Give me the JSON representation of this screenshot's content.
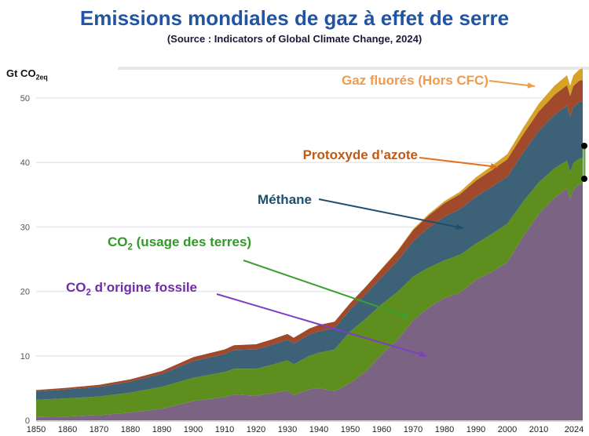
{
  "header": {
    "title": "Emissions mondiales de gaz à effet de serre",
    "subtitle": "(Source : Indicators of Global Climate Change, 2024)",
    "title_color": "#2155a4",
    "subtitle_color": "#1a1a38"
  },
  "axis": {
    "unit_pre": "Gt CO",
    "unit_sub": "2eq",
    "x_ticks": [
      "1850",
      "1860",
      "1870",
      "1880",
      "1890",
      "1900",
      "1910",
      "1920",
      "1930",
      "1940",
      "1950",
      "1960",
      "1970",
      "1980",
      "1990",
      "2000",
      "2010",
      "2024"
    ],
    "y_ticks": [
      0,
      10,
      20,
      30,
      40,
      50
    ]
  },
  "labels": {
    "fgas": {
      "text": "Gaz fluorés (Hors CFC)",
      "color": "#ee9b4f",
      "arrow_color": "#ee9b4f"
    },
    "n2o": {
      "text": "Protoxyde d’azote",
      "color": "#bd5a14",
      "arrow_color": "#e2711c"
    },
    "ch4": {
      "text": "Méthane",
      "color": "#1d4f6e",
      "arrow_color": "#1d4f6e"
    },
    "co2land": {
      "pre": "CO",
      "sub": "2",
      "post": " (usage des terres)",
      "color": "#2f9a28",
      "arrow_color": "#3aa032"
    },
    "co2fossil": {
      "pre": "CO",
      "sub": "2",
      "post": " d’origine fossile",
      "color": "#6f2da8",
      "arrow_color": "#7d3fc1"
    }
  },
  "annotation": {
    "type": "selected-line",
    "line_color": "#6aa84f",
    "handle_color": "#000000"
  },
  "chart_data": {
    "type": "area",
    "stacked": true,
    "title": "Emissions mondiales de gaz à effet de serre",
    "source": "Indicators of Global Climate Change, 2024",
    "xlabel": "",
    "ylabel": "Gt CO2eq",
    "xlim": [
      1850,
      2024
    ],
    "ylim": [
      0,
      55
    ],
    "grid": "horizontal",
    "legend_position": "inline-arrow-labels",
    "years": [
      1850,
      1860,
      1870,
      1880,
      1890,
      1900,
      1910,
      1913,
      1920,
      1925,
      1930,
      1932,
      1937,
      1940,
      1945,
      1950,
      1955,
      1960,
      1965,
      1970,
      1975,
      1980,
      1985,
      1990,
      1995,
      2000,
      2005,
      2010,
      2015,
      2019,
      2020,
      2021,
      2022,
      2023,
      2024
    ],
    "series": [
      {
        "id": "co2-fossile",
        "name": "CO2 d’origine fossile",
        "color": "#7b6384",
        "values": [
          0.5,
          0.6,
          0.8,
          1.2,
          1.8,
          3.0,
          3.6,
          4.0,
          3.8,
          4.2,
          4.6,
          3.9,
          4.8,
          5.0,
          4.5,
          5.8,
          7.6,
          10.2,
          12.5,
          15.5,
          17.5,
          19.0,
          19.8,
          21.8,
          23.0,
          24.5,
          28.5,
          32.0,
          34.5,
          36.0,
          34.3,
          35.8,
          36.3,
          36.6,
          36.8
        ]
      },
      {
        "id": "co2-terres",
        "name": "CO2 (usage des terres)",
        "color": "#5e8e1e",
        "values": [
          2.7,
          2.8,
          2.9,
          3.1,
          3.4,
          3.6,
          3.9,
          4.0,
          4.2,
          4.4,
          4.7,
          4.8,
          5.2,
          5.5,
          6.5,
          8.0,
          8.2,
          7.8,
          7.4,
          6.8,
          6.2,
          5.8,
          5.9,
          5.6,
          5.9,
          6.0,
          5.4,
          4.9,
          4.6,
          4.3,
          4.2,
          4.1,
          4.0,
          4.0,
          3.9
        ]
      },
      {
        "id": "methane",
        "name": "Méthane",
        "color": "#3d6277",
        "values": [
          1.3,
          1.4,
          1.5,
          1.7,
          2.0,
          2.6,
          2.8,
          2.9,
          3.0,
          3.1,
          3.2,
          3.2,
          3.3,
          3.3,
          3.3,
          3.4,
          3.8,
          4.2,
          4.8,
          5.5,
          6.2,
          6.8,
          7.1,
          7.3,
          7.3,
          7.3,
          7.6,
          8.0,
          8.3,
          8.5,
          8.6,
          8.7,
          8.7,
          8.8,
          8.8
        ]
      },
      {
        "id": "n2o",
        "name": "Protoxyde d’azote",
        "color": "#a04a2b",
        "values": [
          0.2,
          0.25,
          0.3,
          0.35,
          0.45,
          0.6,
          0.7,
          0.75,
          0.8,
          0.85,
          0.9,
          0.9,
          0.95,
          1.0,
          1.0,
          1.0,
          1.15,
          1.3,
          1.5,
          1.7,
          1.9,
          2.1,
          2.3,
          2.5,
          2.6,
          2.7,
          2.85,
          3.0,
          3.1,
          3.2,
          3.2,
          3.25,
          3.3,
          3.3,
          3.3
        ]
      },
      {
        "id": "gaz-fluores",
        "name": "Gaz fluorés (Hors CFC)",
        "color": "#d6a228",
        "values": [
          0,
          0,
          0,
          0,
          0,
          0,
          0,
          0,
          0,
          0,
          0,
          0,
          0,
          0,
          0,
          0,
          0.02,
          0.05,
          0.1,
          0.15,
          0.22,
          0.3,
          0.4,
          0.5,
          0.65,
          0.8,
          1.0,
          1.2,
          1.4,
          1.55,
          1.6,
          1.65,
          1.7,
          1.75,
          1.8
        ]
      }
    ]
  }
}
